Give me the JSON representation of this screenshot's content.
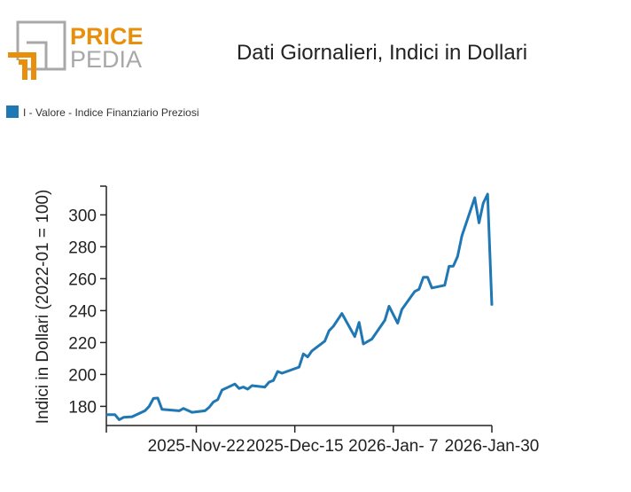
{
  "logo": {
    "word1": "PRICE",
    "word2": "PEDIA",
    "orange": "#E8900C",
    "gray": "#A8A8A8"
  },
  "chart_data": {
    "type": "line",
    "title": "Dati Giornalieri, Indici in Dollari",
    "xlabel": "",
    "ylabel": "Indici in Dollari (2022-01 = 100)",
    "xlim": [
      "2025-11-01",
      "2026-01-30"
    ],
    "ylim": [
      168,
      318
    ],
    "xticks": [
      "2025-11-01",
      "2025-11-22",
      "2025-12-15",
      "2026-01-07",
      "2026-01-30"
    ],
    "xtick_labels": [
      "",
      "2025-Nov-22",
      "2025-Dec-15",
      "2026-Jan- 7",
      "2026-Jan-30"
    ],
    "yticks": [
      180,
      200,
      220,
      240,
      260,
      280,
      300
    ],
    "ytick_labels": [
      "180",
      "200",
      "220",
      "240",
      "260",
      "280",
      "300"
    ],
    "grid": false,
    "legend": "top-left",
    "series": [
      {
        "name": "I - Valore - Indice Finanziario Preziosi",
        "color": "#1F77B4",
        "x": [
          "2025-11-01",
          "2025-11-03",
          "2025-11-04",
          "2025-11-05",
          "2025-11-07",
          "2025-11-10",
          "2025-11-11",
          "2025-11-12",
          "2025-11-13",
          "2025-11-14",
          "2025-11-18",
          "2025-11-19",
          "2025-11-21",
          "2025-11-24",
          "2025-11-25",
          "2025-11-26",
          "2025-11-27",
          "2025-11-28",
          "2025-12-01",
          "2025-12-02",
          "2025-12-03",
          "2025-12-04",
          "2025-12-05",
          "2025-12-08",
          "2025-12-09",
          "2025-12-10",
          "2025-12-11",
          "2025-12-12",
          "2025-12-16",
          "2025-12-17",
          "2025-12-18",
          "2025-12-19",
          "2025-12-22",
          "2025-12-23",
          "2025-12-24",
          "2025-12-26",
          "2025-12-29",
          "2025-12-30",
          "2025-12-31",
          "2026-01-02",
          "2026-01-05",
          "2026-01-06",
          "2026-01-08",
          "2026-01-09",
          "2026-01-12",
          "2026-01-13",
          "2026-01-14",
          "2026-01-15",
          "2026-01-16",
          "2026-01-19",
          "2026-01-20",
          "2026-01-21",
          "2026-01-22",
          "2026-01-23",
          "2026-01-26",
          "2026-01-27",
          "2026-01-28",
          "2026-01-29",
          "2026-01-30"
        ],
        "y": [
          174.8,
          174.8,
          171.6,
          173.1,
          173.5,
          177.2,
          180.0,
          185.0,
          185.2,
          178.1,
          177.2,
          178.7,
          176.3,
          177.2,
          179.4,
          182.8,
          184.2,
          190.2,
          194.0,
          191.2,
          192.1,
          190.8,
          193.0,
          192.1,
          195.2,
          196.2,
          201.9,
          200.8,
          204.6,
          212.9,
          211.0,
          214.8,
          220.9,
          227.4,
          230.2,
          238.2,
          223.7,
          232.6,
          219.1,
          222.2,
          233.9,
          242.8,
          232.1,
          240.8,
          252.0,
          253.4,
          260.9,
          260.9,
          254.2,
          255.9,
          267.8,
          267.9,
          273.9,
          286.9,
          310.7,
          295.0,
          307.4,
          313.0,
          243.2
        ]
      }
    ]
  }
}
